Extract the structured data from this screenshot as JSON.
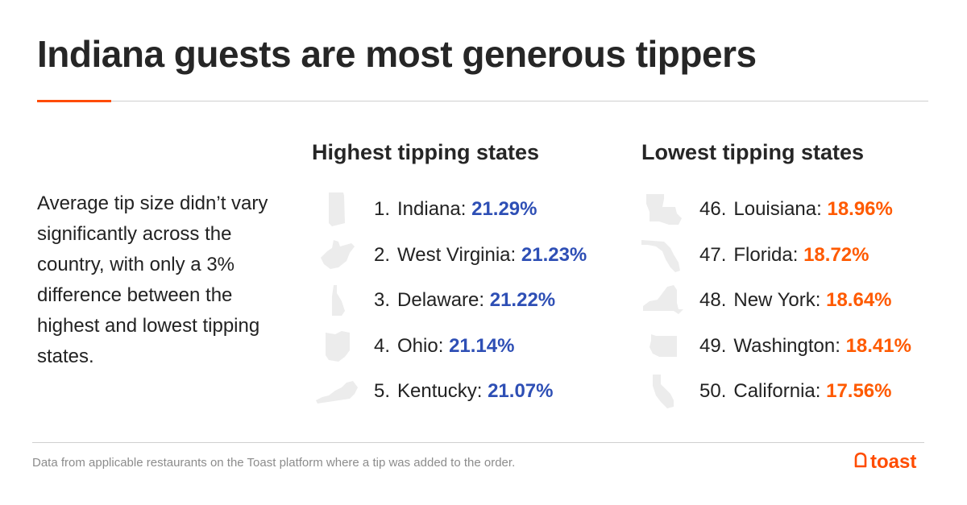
{
  "title": "Indiana guests are most generous tippers",
  "intro": "Average tip size didn’t vary significantly across the country, with only a 3% difference between the highest and lowest tipping states.",
  "highest": {
    "heading": "Highest tipping states",
    "items": [
      {
        "rank": "1.",
        "state": "Indiana:",
        "pct": "21.29%",
        "icon": "indiana-shape-icon"
      },
      {
        "rank": "2.",
        "state": "West Virginia:",
        "pct": "21.23%",
        "icon": "west-virginia-shape-icon"
      },
      {
        "rank": "3.",
        "state": "Delaware:",
        "pct": "21.22%",
        "icon": "delaware-shape-icon"
      },
      {
        "rank": "4.",
        "state": "Ohio:",
        "pct": "21.14%",
        "icon": "ohio-shape-icon"
      },
      {
        "rank": "5.",
        "state": "Kentucky:",
        "pct": "21.07%",
        "icon": "kentucky-shape-icon"
      }
    ]
  },
  "lowest": {
    "heading": "Lowest tipping states",
    "items": [
      {
        "rank": "46.",
        "state": "Louisiana:",
        "pct": "18.96%",
        "icon": "louisiana-shape-icon"
      },
      {
        "rank": "47.",
        "state": "Florida:",
        "pct": "18.72%",
        "icon": "florida-shape-icon"
      },
      {
        "rank": "48.",
        "state": "New York:",
        "pct": "18.64%",
        "icon": "new-york-shape-icon"
      },
      {
        "rank": "49.",
        "state": "Washington:",
        "pct": "18.41%",
        "icon": "washington-shape-icon"
      },
      {
        "rank": "50.",
        "state": "California:",
        "pct": "17.56%",
        "icon": "california-shape-icon"
      }
    ]
  },
  "footnote": "Data from applicable restaurants on the Toast platform where a tip was added to the order.",
  "logo": {
    "text": "toast",
    "icon": "toast-logo-icon"
  },
  "colors": {
    "accent": "#ff4c00",
    "high_value": "#2e4fb5",
    "low_value": "#ff5a00",
    "state_shape": "#ececec"
  }
}
